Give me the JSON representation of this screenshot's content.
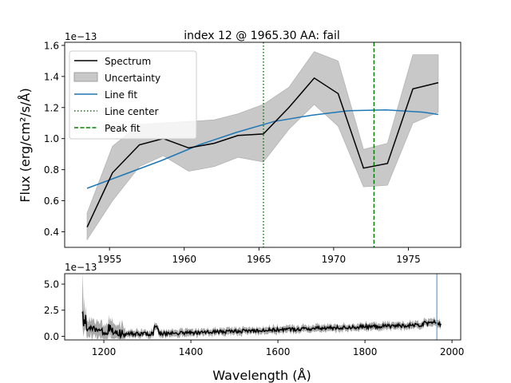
{
  "figure": {
    "shared_xlabel": "Wavelength (Å)"
  },
  "chart_data": [
    {
      "type": "line",
      "title": "index 12 @ 1965.30 AA: fail",
      "xlabel": "",
      "ylabel": "Flux (erg/cm²/s/Å)",
      "y_offset_label": "1e−13",
      "xlim": [
        1952.0,
        1978.5
      ],
      "ylim": [
        0.3,
        1.62
      ],
      "x_ticks": [
        1955,
        1960,
        1965,
        1970,
        1975
      ],
      "y_ticks": [
        0.4,
        0.6,
        0.8,
        1.0,
        1.2,
        1.4,
        1.6
      ],
      "y_tick_labels": [
        "0.4",
        "0.6",
        "0.8",
        "1.0",
        "1.2",
        "1.4",
        "1.6"
      ],
      "legend_position": "top-left",
      "legend": [
        {
          "label": "Spectrum",
          "style": "line",
          "color": "#000000"
        },
        {
          "label": "Uncertainty",
          "style": "band",
          "color": "#c8c8c8"
        },
        {
          "label": "Line fit",
          "style": "line",
          "color": "#1f77b4"
        },
        {
          "label": "Line center",
          "style": "dotted",
          "color": "#008000"
        },
        {
          "label": "Peak fit",
          "style": "dashed",
          "color": "#008000"
        }
      ],
      "spectrum": {
        "x": [
          1953.5,
          1955.2,
          1957.0,
          1958.6,
          1960.3,
          1962.0,
          1963.6,
          1965.3,
          1967.0,
          1968.7,
          1970.3,
          1972.0,
          1973.6,
          1975.3,
          1977.0
        ],
        "y": [
          0.43,
          0.78,
          0.96,
          1.0,
          0.94,
          0.97,
          1.02,
          1.03,
          1.2,
          1.39,
          1.29,
          0.81,
          0.84,
          1.32,
          1.36
        ]
      },
      "uncertainty": {
        "lower": [
          0.35,
          0.6,
          0.82,
          0.89,
          0.79,
          0.82,
          0.88,
          0.85,
          1.06,
          1.22,
          1.08,
          0.69,
          0.7,
          1.1,
          1.17
        ],
        "upper": [
          0.52,
          0.95,
          1.09,
          1.1,
          1.11,
          1.12,
          1.16,
          1.22,
          1.33,
          1.56,
          1.5,
          0.93,
          0.97,
          1.54,
          1.54
        ]
      },
      "line_fit": {
        "x": [
          1953.5,
          1956.0,
          1958.5,
          1961.0,
          1963.5,
          1966.0,
          1968.5,
          1971.0,
          1973.5,
          1976.0,
          1977.0
        ],
        "y": [
          0.68,
          0.77,
          0.86,
          0.96,
          1.04,
          1.11,
          1.15,
          1.18,
          1.185,
          1.17,
          1.155
        ]
      },
      "line_center": 1965.3,
      "peak_fit": 1972.7,
      "colors": {
        "spectrum": "#000000",
        "band": "#c8c8c8",
        "fit": "#1f77b4",
        "markers": "#008000"
      }
    },
    {
      "type": "line",
      "title": "",
      "xlabel": "Wavelength (Å)",
      "ylabel": "",
      "y_offset_label": "1e−13",
      "xlim": [
        1110,
        2020
      ],
      "ylim": [
        -0.35,
        6.0
      ],
      "x_ticks": [
        1200,
        1400,
        1600,
        1800,
        2000
      ],
      "y_ticks": [
        0.0,
        2.5,
        5.0
      ],
      "y_tick_labels": [
        "0.0",
        "2.5",
        "5.0"
      ],
      "highlight_x": 1965.3,
      "highlight_color": "#7fb3d5",
      "colors": {
        "spectrum": "#000000",
        "band": "#aaaaaa"
      }
    }
  ]
}
